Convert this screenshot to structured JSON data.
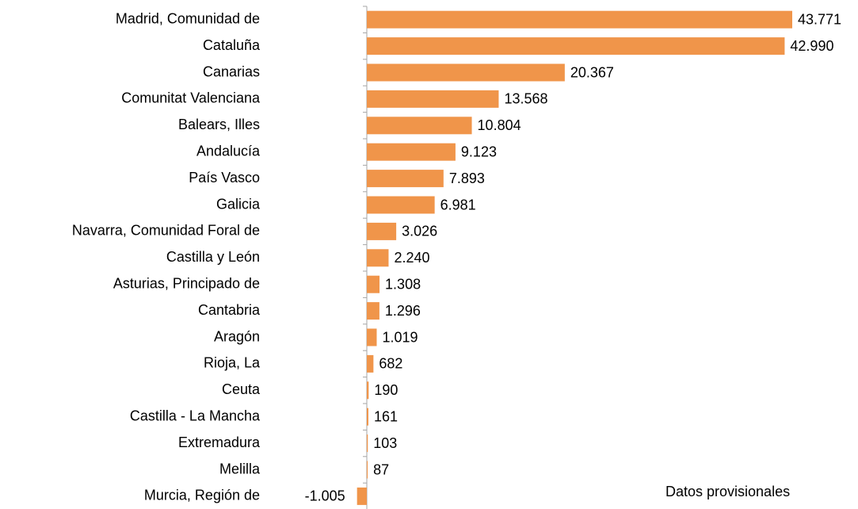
{
  "chart_data": {
    "type": "bar",
    "orientation": "horizontal",
    "categories": [
      "Madrid, Comunidad de",
      "Cataluña",
      "Canarias",
      "Comunitat Valenciana",
      "Balears, Illes",
      "Andalucía",
      "País Vasco",
      "Galicia",
      "Navarra, Comunidad Foral de",
      "Castilla y León",
      "Asturias, Principado de",
      "Cantabria",
      "Aragón",
      "Rioja, La",
      "Ceuta",
      "Castilla - La Mancha",
      "Extremadura",
      "Melilla",
      "Murcia, Región de"
    ],
    "values": [
      43771,
      42990,
      20367,
      13568,
      10804,
      9123,
      7893,
      6981,
      3026,
      2240,
      1308,
      1296,
      1019,
      682,
      190,
      161,
      103,
      87,
      -1005
    ],
    "value_labels": [
      "43.771",
      "42.990",
      "20.367",
      "13.568",
      "10.804",
      "9.123",
      "7.893",
      "6.981",
      "3.026",
      "2.240",
      "1.308",
      "1.296",
      "1.019",
      "682",
      "190",
      "161",
      "103",
      "87",
      "-1.005"
    ],
    "color": "#f0954a",
    "annotation": "Datos provisionales"
  }
}
